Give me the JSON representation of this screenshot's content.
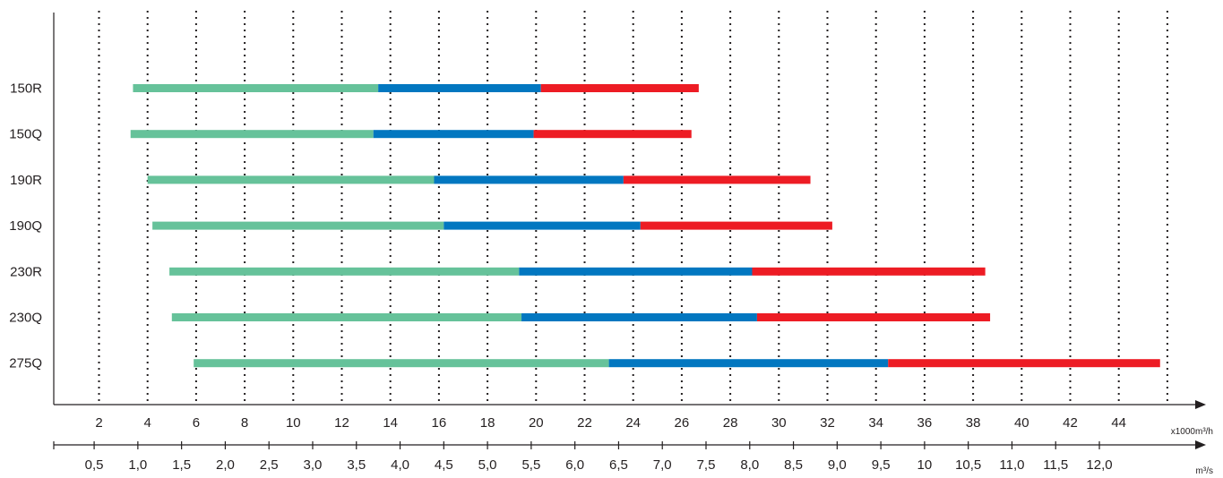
{
  "chart_data": {
    "type": "bar",
    "orientation": "horizontal-range",
    "categories": [
      "150R",
      "150Q",
      "190R",
      "190Q",
      "230R",
      "230Q",
      "275Q"
    ],
    "segments": [
      {
        "color": "#66c29a",
        "ranges": [
          [
            3.4,
            13.5
          ],
          [
            3.3,
            13.3
          ],
          [
            4.0,
            15.8
          ],
          [
            4.2,
            16.2
          ],
          [
            4.9,
            19.3
          ],
          [
            5.0,
            19.4
          ],
          [
            5.9,
            23.0
          ]
        ]
      },
      {
        "color": "#0277c0",
        "ranges": [
          [
            13.5,
            20.2
          ],
          [
            13.3,
            19.9
          ],
          [
            15.8,
            23.6
          ],
          [
            16.2,
            24.3
          ],
          [
            19.3,
            28.9
          ],
          [
            19.4,
            29.1
          ],
          [
            23.0,
            34.5
          ]
        ]
      },
      {
        "color": "#ed1c24",
        "ranges": [
          [
            20.2,
            26.7
          ],
          [
            19.9,
            26.4
          ],
          [
            23.6,
            31.3
          ],
          [
            24.3,
            32.2
          ],
          [
            28.9,
            38.5
          ],
          [
            29.1,
            38.7
          ],
          [
            34.5,
            45.7
          ]
        ]
      }
    ],
    "x_axis_primary": {
      "ticks": [
        "2",
        "4",
        "6",
        "8",
        "10",
        "12",
        "14",
        "16",
        "18",
        "20",
        "22",
        "24",
        "26",
        "28",
        "30",
        "32",
        "34",
        "36",
        "38",
        "40",
        "42",
        "44"
      ],
      "unit": "x1000m³/h"
    },
    "x_axis_secondary": {
      "ticks": [
        "0,5",
        "1,0",
        "1,5",
        "2,0",
        "2,5",
        "3,0",
        "3,5",
        "4,0",
        "4,5",
        "5,0",
        "5,5",
        "6,0",
        "6,5",
        "7,0",
        "7,5",
        "8,0",
        "8,5",
        "9,0",
        "9,5",
        "10",
        "10,5",
        "11,0",
        "11,5",
        "12,0"
      ],
      "unit": "m³/s"
    },
    "grid": true,
    "grid_style": "dotted-vertical"
  }
}
